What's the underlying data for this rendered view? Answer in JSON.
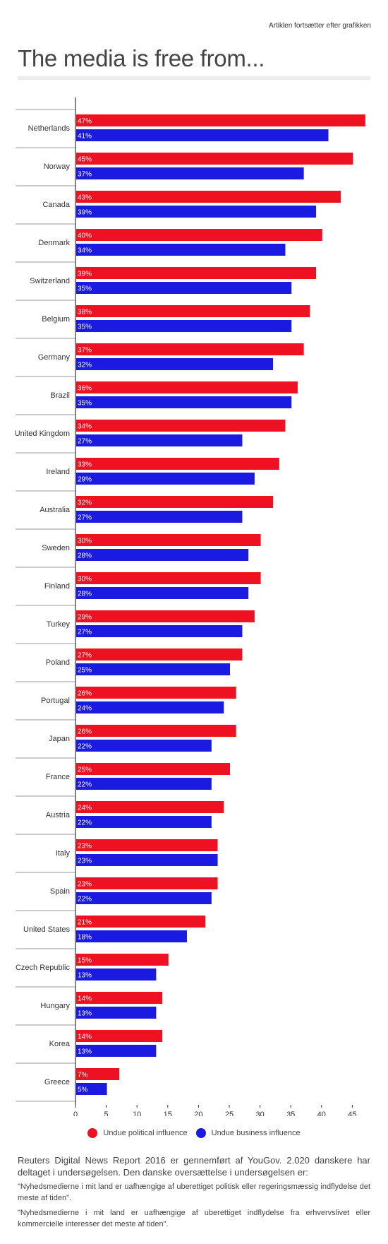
{
  "top_note": "Artiklen fortsætter efter grafikken",
  "title": "The media is free from...",
  "chart_data": {
    "type": "bar",
    "orientation": "horizontal",
    "title": "The media is free from...",
    "xlabel": "",
    "ylabel": "",
    "xlim": [
      0,
      48
    ],
    "x_ticks": [
      0,
      5,
      10,
      15,
      20,
      25,
      30,
      35,
      40,
      45
    ],
    "legend_position": "bottom",
    "categories": [
      "Netherlands",
      "Norway",
      "Canada",
      "Denmark",
      "Switzerland",
      "Belgium",
      "Germany",
      "Brazil",
      "United Kingdom",
      "Ireland",
      "Australia",
      "Sweden",
      "Finland",
      "Turkey",
      "Poland",
      "Portugal",
      "Japan",
      "France",
      "Austria",
      "Italy",
      "Spain",
      "United States",
      "Czech Republic",
      "Hungary",
      "Korea",
      "Greece"
    ],
    "series": [
      {
        "name": "Undue political influence",
        "color": "#ee1122",
        "values": [
          47,
          45,
          43,
          40,
          39,
          38,
          37,
          36,
          34,
          33,
          32,
          30,
          30,
          29,
          27,
          26,
          26,
          25,
          24,
          23,
          23,
          21,
          15,
          14,
          14,
          7
        ]
      },
      {
        "name": "Undue business influence",
        "color": "#1a1ae0",
        "values": [
          41,
          37,
          39,
          34,
          35,
          35,
          32,
          35,
          27,
          29,
          27,
          28,
          28,
          27,
          25,
          24,
          22,
          22,
          22,
          23,
          22,
          18,
          13,
          13,
          13,
          5
        ]
      }
    ]
  },
  "footer": {
    "main": "Reuters Digital News Report 2016 er gennemført af YouGov. 2.020 danskere har deltaget i undersøgelsen. Den danske oversættelse i undersøgelsen er:",
    "quote1": "\"Nyhedsmedierne i mit land er uafhængige af uberettiget politisk eller regeringsmæssig indflydelse det meste af tiden\".",
    "quote2": "\"Nyhedsmedierne i mit land er uafhængige af uberettiget indflydelse fra erhvervslivet eller kommercielle interesser det meste af tiden\"."
  }
}
